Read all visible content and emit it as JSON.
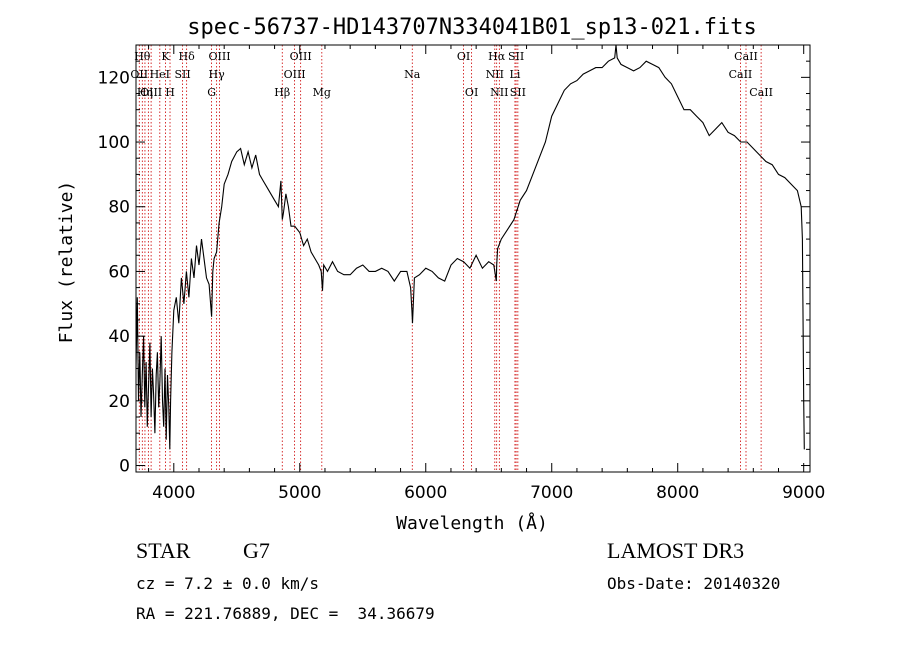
{
  "chart_data": {
    "type": "line",
    "title": "spec-56737-HD143707N334041B01_sp13-021.fits",
    "xlabel": "Wavelength (Å)",
    "ylabel": "Flux (relative)",
    "xlim": [
      3700,
      9050
    ],
    "ylim": [
      -2,
      130
    ],
    "xticks": [
      4000,
      5000,
      6000,
      7000,
      8000,
      9000
    ],
    "yticks": [
      0,
      20,
      40,
      60,
      80,
      100,
      120
    ],
    "grid": false,
    "line_color": "#000000",
    "marker_color": "#cc0000",
    "series": [
      {
        "x": [
          3700,
          3710,
          3720,
          3730,
          3740,
          3750,
          3760,
          3770,
          3780,
          3790,
          3800,
          3810,
          3820,
          3830,
          3840,
          3850,
          3860,
          3870,
          3880,
          3890,
          3900,
          3910,
          3920,
          3930,
          3940,
          3950,
          3960,
          3968,
          3975,
          3985,
          4000,
          4020,
          4040,
          4060,
          4080,
          4100,
          4120,
          4140,
          4160,
          4180,
          4200,
          4220,
          4240,
          4260,
          4280,
          4300,
          4310,
          4320,
          4340,
          4360,
          4380,
          4400,
          4430,
          4460,
          4500,
          4530,
          4560,
          4590,
          4620,
          4650,
          4680,
          4710,
          4740,
          4770,
          4800,
          4830,
          4850,
          4861,
          4870,
          4890,
          4910,
          4930,
          4960,
          5000,
          5030,
          5060,
          5090,
          5120,
          5150,
          5170,
          5180,
          5190,
          5220,
          5260,
          5300,
          5350,
          5400,
          5450,
          5500,
          5550,
          5600,
          5650,
          5700,
          5750,
          5800,
          5850,
          5880,
          5890,
          5895,
          5910,
          5950,
          6000,
          6050,
          6100,
          6150,
          6200,
          6250,
          6300,
          6350,
          6400,
          6450,
          6500,
          6540,
          6560,
          6563,
          6570,
          6600,
          6650,
          6700,
          6750,
          6800,
          6850,
          6900,
          6950,
          7000,
          7050,
          7100,
          7150,
          7200,
          7250,
          7300,
          7350,
          7400,
          7450,
          7500,
          7510,
          7520,
          7550,
          7600,
          7650,
          7700,
          7750,
          7800,
          7850,
          7900,
          7950,
          8000,
          8050,
          8100,
          8150,
          8200,
          8250,
          8300,
          8350,
          8400,
          8450,
          8500,
          8550,
          8600,
          8650,
          8700,
          8750,
          8800,
          8850,
          8900,
          8950,
          8980,
          8990,
          9000,
          9005
        ],
        "y": [
          30,
          52,
          20,
          35,
          15,
          28,
          40,
          18,
          32,
          12,
          25,
          38,
          15,
          30,
          22,
          10,
          28,
          35,
          18,
          26,
          40,
          20,
          12,
          30,
          8,
          28,
          18,
          5,
          20,
          35,
          48,
          52,
          44,
          58,
          50,
          60,
          52,
          64,
          58,
          68,
          62,
          70,
          64,
          58,
          56,
          46,
          60,
          64,
          66,
          75,
          80,
          87,
          90,
          94,
          97,
          98,
          93,
          97,
          92,
          96,
          90,
          88,
          86,
          84,
          82,
          80,
          88,
          76,
          78,
          84,
          80,
          74,
          74,
          72,
          68,
          70,
          66,
          64,
          62,
          60,
          54,
          62,
          60,
          63,
          60,
          59,
          59,
          61,
          62,
          60,
          60,
          61,
          60,
          57,
          60,
          60,
          55,
          48,
          44,
          58,
          59,
          61,
          60,
          58,
          57,
          62,
          64,
          63,
          61,
          65,
          61,
          63,
          62,
          57,
          62,
          67,
          70,
          73,
          76,
          82,
          85,
          90,
          95,
          100,
          108,
          112,
          116,
          118,
          119,
          121,
          122,
          123,
          123,
          125,
          126,
          130,
          126,
          124,
          123,
          122,
          123,
          125,
          124,
          123,
          120,
          118,
          114,
          110,
          110,
          108,
          106,
          102,
          104,
          106,
          103,
          102,
          100,
          100,
          98,
          96,
          94,
          93,
          90,
          89,
          87,
          85,
          80,
          70,
          20,
          5
        ]
      }
    ],
    "line_markers": [
      {
        "x": 3726,
        "label": "OII",
        "row": 1
      },
      {
        "x": 3750,
        "label": "Hθ",
        "row": 0
      },
      {
        "x": 3771,
        "label": "Hη",
        "row": 2
      },
      {
        "x": 3798,
        "label": "",
        "row": -1
      },
      {
        "x": 3820,
        "label": "OIII",
        "row": 2
      },
      {
        "x": 3889,
        "label": "HeI",
        "row": 1
      },
      {
        "x": 3934,
        "label": "K",
        "row": 0
      },
      {
        "x": 3970,
        "label": "H",
        "row": 2
      },
      {
        "x": 4070,
        "label": "SII",
        "row": 1
      },
      {
        "x": 4102,
        "label": "Hδ",
        "row": 0
      },
      {
        "x": 4300,
        "label": "G",
        "row": 2
      },
      {
        "x": 4340,
        "label": "Hγ",
        "row": 1
      },
      {
        "x": 4363,
        "label": "OIII",
        "row": 0
      },
      {
        "x": 4861,
        "label": "Hβ",
        "row": 2
      },
      {
        "x": 4959,
        "label": "OIII",
        "row": 1
      },
      {
        "x": 5007,
        "label": "OIII",
        "row": 0
      },
      {
        "x": 5175,
        "label": "Mg",
        "row": 2
      },
      {
        "x": 5893,
        "label": "Na",
        "row": 1
      },
      {
        "x": 6300,
        "label": "OI",
        "row": 0
      },
      {
        "x": 6364,
        "label": "OI",
        "row": 2
      },
      {
        "x": 6548,
        "label": "NII",
        "row": 1
      },
      {
        "x": 6563,
        "label": "Hα",
        "row": 0
      },
      {
        "x": 6584,
        "label": "NII",
        "row": 2
      },
      {
        "x": 6708,
        "label": "Li",
        "row": 1
      },
      {
        "x": 6717,
        "label": "SII",
        "row": 0
      },
      {
        "x": 6731,
        "label": "SII",
        "row": 2
      },
      {
        "x": 8498,
        "label": "CaII",
        "row": 1
      },
      {
        "x": 8542,
        "label": "CaII",
        "row": 0
      },
      {
        "x": 8662,
        "label": "CaII",
        "row": 2
      }
    ]
  },
  "info": {
    "class": "STAR",
    "subclass": "G7",
    "survey": "LAMOST DR3",
    "cz": "cz = 7.2 ± 0.0 km/s",
    "obs_date": "Obs-Date: 20140320",
    "radec": "RA = 221.76889, DEC =  34.36679"
  }
}
